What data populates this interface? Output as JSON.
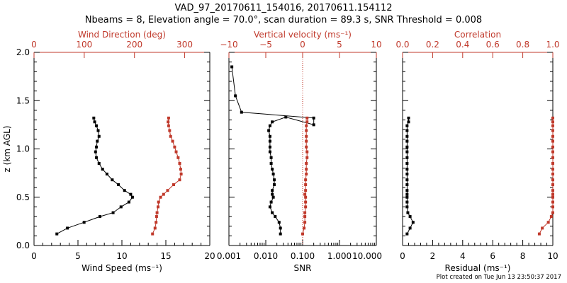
{
  "title": {
    "line1": "VAD_97_20170611_154016, 20170611.154112",
    "line2": "Nbeams = 8, Elevation angle = 70.0°, scan duration = 89.3 s, SNR Threshold = 0.008"
  },
  "footer": "Plot created on Tue Jun 13 23:50:37 2017",
  "colors": {
    "primary": "#000000",
    "secondary": "#c0392b"
  },
  "chart_data": [
    {
      "type": "line",
      "panel": "wind",
      "ylabel": "z (km AGL)",
      "ylim": [
        0,
        2.0
      ],
      "yticks": [
        "0.0",
        "0.5",
        "1.0",
        "1.5",
        "2.0"
      ],
      "bottom_axis": {
        "label": "Wind Speed (ms⁻¹)",
        "range": [
          0,
          20
        ],
        "ticks": [
          "0",
          "5",
          "10",
          "15",
          "20"
        ]
      },
      "top_axis": {
        "label": "Wind Direction (deg)",
        "range": [
          0,
          350
        ],
        "ticks": [
          "0",
          "100",
          "200",
          "300"
        ]
      },
      "series": [
        {
          "axis": "bottom",
          "color": "#000000",
          "x": [
            2.6,
            3.8,
            5.7,
            7.5,
            9.0,
            9.9,
            10.8,
            11.2,
            11.0,
            10.3,
            9.6,
            8.9,
            8.3,
            7.8,
            7.4,
            7.1,
            7.0,
            7.1,
            7.2,
            7.4,
            7.3,
            7.1,
            6.9,
            6.8
          ],
          "y": [
            0.12,
            0.18,
            0.24,
            0.3,
            0.34,
            0.4,
            0.45,
            0.5,
            0.53,
            0.57,
            0.63,
            0.68,
            0.74,
            0.79,
            0.85,
            0.91,
            0.97,
            1.02,
            1.08,
            1.13,
            1.19,
            1.24,
            1.28,
            1.32
          ]
        },
        {
          "axis": "top",
          "color": "#c0392b",
          "x": [
            236,
            241,
            243,
            244,
            245,
            247,
            248,
            252,
            258,
            266,
            278,
            290,
            293,
            292,
            290,
            287,
            283,
            280,
            276,
            272,
            270,
            268,
            267,
            268
          ],
          "y": [
            0.12,
            0.18,
            0.24,
            0.3,
            0.34,
            0.4,
            0.45,
            0.5,
            0.53,
            0.57,
            0.63,
            0.68,
            0.74,
            0.79,
            0.85,
            0.91,
            0.97,
            1.02,
            1.08,
            1.13,
            1.19,
            1.24,
            1.28,
            1.32
          ]
        }
      ]
    },
    {
      "type": "line",
      "panel": "snr",
      "ylim": [
        0,
        2.0
      ],
      "bottom_axis": {
        "label": "SNR",
        "scale": "log",
        "range": [
          0.001,
          10
        ],
        "ticks": [
          "0.001",
          "0.010",
          "0.100",
          "1.000",
          "10.000"
        ]
      },
      "top_axis": {
        "label": "Vertical velocity (ms⁻¹)",
        "range": [
          -10,
          10
        ],
        "ticks": [
          "−10",
          "−5",
          "0",
          "5",
          "10"
        ],
        "zero_line": "dotted"
      },
      "series": [
        {
          "axis": "bottom",
          "color": "#000000",
          "x": [
            0.025,
            0.025,
            0.023,
            0.018,
            0.015,
            0.013,
            0.014,
            0.016,
            0.015,
            0.015,
            0.017,
            0.017,
            0.016,
            0.015,
            0.014,
            0.014,
            0.013,
            0.013,
            0.013,
            0.013,
            0.012,
            0.013,
            0.015,
            0.035,
            0.2,
            0.2,
            0.0022,
            0.0015,
            0.0012
          ],
          "y": [
            0.12,
            0.18,
            0.24,
            0.3,
            0.34,
            0.4,
            0.45,
            0.5,
            0.53,
            0.57,
            0.63,
            0.68,
            0.74,
            0.79,
            0.85,
            0.91,
            0.97,
            1.02,
            1.08,
            1.13,
            1.19,
            1.24,
            1.28,
            1.33,
            1.25,
            1.32,
            1.38,
            1.55,
            1.85
          ]
        },
        {
          "axis": "top",
          "color": "#c0392b",
          "x": [
            0.0,
            0.2,
            0.3,
            0.3,
            0.3,
            0.4,
            0.4,
            0.4,
            0.3,
            0.4,
            0.4,
            0.4,
            0.5,
            0.5,
            0.5,
            0.6,
            0.6,
            0.5,
            0.5,
            0.5,
            0.5,
            0.5,
            0.6,
            0.6
          ],
          "y": [
            0.12,
            0.18,
            0.24,
            0.3,
            0.34,
            0.4,
            0.45,
            0.5,
            0.53,
            0.57,
            0.63,
            0.68,
            0.74,
            0.79,
            0.85,
            0.91,
            0.97,
            1.02,
            1.08,
            1.13,
            1.19,
            1.24,
            1.28,
            1.32
          ]
        }
      ]
    },
    {
      "type": "line",
      "panel": "residual",
      "ylim": [
        0,
        2.0
      ],
      "bottom_axis": {
        "label": "Residual (ms⁻¹)",
        "range": [
          0,
          10
        ],
        "ticks": [
          "0",
          "2",
          "4",
          "6",
          "8",
          "10"
        ]
      },
      "top_axis": {
        "label": "Correlation",
        "range": [
          0,
          1
        ],
        "ticks": [
          "0.0",
          "0.2",
          "0.4",
          "0.6",
          "0.8",
          "1.0"
        ]
      },
      "series": [
        {
          "axis": "bottom",
          "color": "#000000",
          "x": [
            0.3,
            0.5,
            0.7,
            0.5,
            0.35,
            0.3,
            0.3,
            0.3,
            0.3,
            0.3,
            0.3,
            0.3,
            0.3,
            0.3,
            0.3,
            0.3,
            0.3,
            0.3,
            0.3,
            0.3,
            0.3,
            0.3,
            0.4,
            0.4
          ],
          "y": [
            0.12,
            0.18,
            0.24,
            0.3,
            0.34,
            0.4,
            0.45,
            0.5,
            0.53,
            0.57,
            0.63,
            0.68,
            0.74,
            0.79,
            0.85,
            0.91,
            0.97,
            1.02,
            1.08,
            1.13,
            1.19,
            1.24,
            1.28,
            1.32
          ]
        },
        {
          "axis": "top",
          "color": "#c0392b",
          "x": [
            0.91,
            0.93,
            0.97,
            0.99,
            1.0,
            1.0,
            1.0,
            1.0,
            1.0,
            1.0,
            1.0,
            1.0,
            1.0,
            1.0,
            1.0,
            1.0,
            1.0,
            1.0,
            1.0,
            1.0,
            1.0,
            1.0,
            1.0,
            1.0
          ],
          "y": [
            0.12,
            0.18,
            0.24,
            0.3,
            0.34,
            0.4,
            0.45,
            0.5,
            0.53,
            0.57,
            0.63,
            0.68,
            0.74,
            0.79,
            0.85,
            0.91,
            0.97,
            1.02,
            1.08,
            1.13,
            1.19,
            1.24,
            1.28,
            1.32
          ]
        }
      ]
    }
  ]
}
